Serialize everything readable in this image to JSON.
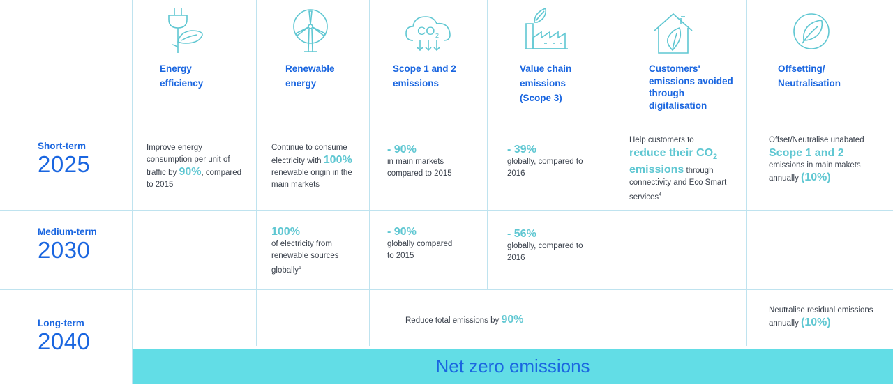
{
  "columns": [
    {
      "icon": "plug-leaf-icon",
      "title_lines": [
        "Energy",
        "efficiency"
      ]
    },
    {
      "icon": "wind-turbine-icon",
      "title_lines": [
        "Renewable",
        "energy"
      ]
    },
    {
      "icon": "co2-cloud-icon",
      "cloud_label": "CO",
      "cloud_sub": "2",
      "title_lines": [
        "Scope 1 and 2",
        "emissions"
      ]
    },
    {
      "icon": "factory-leaf-icon",
      "title_lines": [
        "Value chain",
        "emissions",
        "(Scope 3)"
      ]
    },
    {
      "icon": "house-leaf-icon",
      "title_lines": [
        "Customers'",
        "emissions avoided",
        "through",
        "digitalisation"
      ]
    },
    {
      "icon": "leaf-circle-icon",
      "title_lines": [
        "Offsetting/",
        "Neutralisation"
      ]
    }
  ],
  "rows": [
    {
      "term": "Short-term",
      "year": "2025"
    },
    {
      "term": "Medium-term",
      "year": "2030"
    },
    {
      "term": "Long-term",
      "year": "2040"
    }
  ],
  "short": {
    "c1": {
      "l1": "Improve energy",
      "l2": "consumption per unit of",
      "l3a": "traffic by ",
      "l3b": "90%",
      "l3c": ", compared",
      "l4": "to 2015"
    },
    "c2": {
      "l1": "Continue to consume",
      "l2a": "electricity with ",
      "l2b": "100%",
      "l3": "renewable origin in the",
      "l4": "main markets"
    },
    "c3": {
      "big": "- 90%",
      "l1": "in main markets",
      "l2": "compared to 2015"
    },
    "c4": {
      "big": "- 39%",
      "l1": "globally, compared to",
      "l2": "2016"
    },
    "c5": {
      "l1": "Help customers to",
      "big1a": "reduce their CO",
      "big1b": "2",
      "big2": "emissions",
      "l2": " through",
      "l3": "connectivity and Eco Smart",
      "l4": "services",
      "sup": "4"
    },
    "c6": {
      "l1": "Offset/Neutralise unabated",
      "big": "Scope 1 and 2",
      "l2": "emissions in main makets",
      "l3a": "annually ",
      "l3b": "(10%)"
    }
  },
  "medium": {
    "c2": {
      "big": "100%",
      "l1": "of electricity from",
      "l2": "renewable sources",
      "l3": "globally",
      "sup": "5"
    },
    "c3": {
      "big": "- 90%",
      "l1": "globally compared",
      "l2": "to 2015"
    },
    "c4": {
      "big": "- 56%",
      "l1": "globally, compared to",
      "l2": "2016"
    }
  },
  "long": {
    "center": {
      "a": "Reduce total emissions by ",
      "b": "90%"
    },
    "c6": {
      "l1": "Neutralise residual emissions",
      "l2a": "annually ",
      "l2b": "(10%)"
    }
  },
  "banner": "Net zero emissions"
}
